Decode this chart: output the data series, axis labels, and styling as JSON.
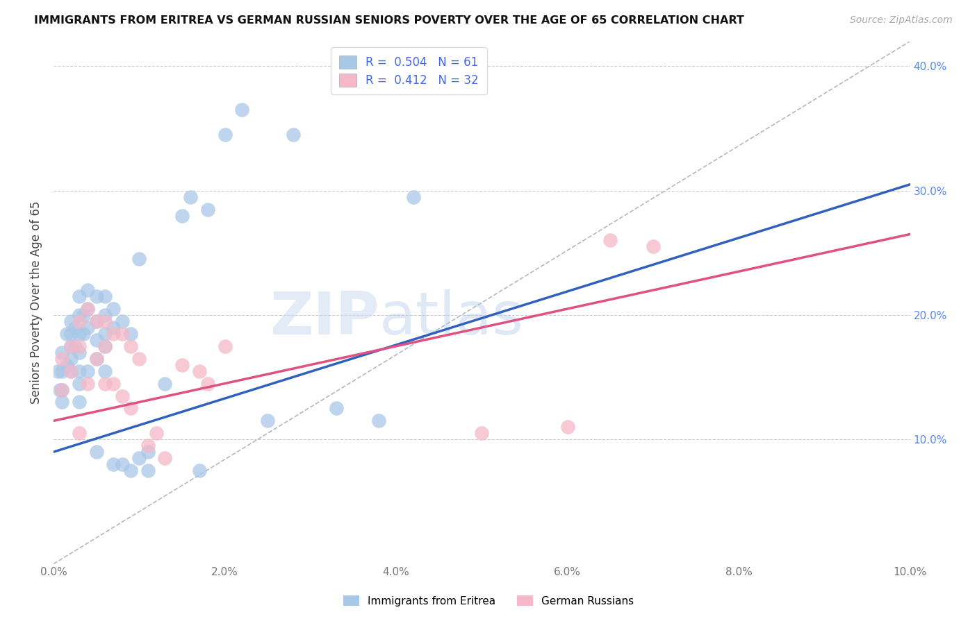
{
  "title": "IMMIGRANTS FROM ERITREA VS GERMAN RUSSIAN SENIORS POVERTY OVER THE AGE OF 65 CORRELATION CHART",
  "source": "Source: ZipAtlas.com",
  "ylabel": "Seniors Poverty Over the Age of 65",
  "xlim": [
    0.0,
    0.1
  ],
  "ylim": [
    0.0,
    0.42
  ],
  "xticks": [
    0.0,
    0.02,
    0.04,
    0.06,
    0.08,
    0.1
  ],
  "yticks": [
    0.0,
    0.1,
    0.2,
    0.3,
    0.4
  ],
  "ytick_labels_right": [
    "",
    "10.0%",
    "20.0%",
    "30.0%",
    "40.0%"
  ],
  "xtick_labels": [
    "0.0%",
    "2.0%",
    "4.0%",
    "6.0%",
    "8.0%",
    "10.0%"
  ],
  "legend_label1": "Immigrants from Eritrea",
  "legend_label2": "German Russians",
  "R1": 0.504,
  "N1": 61,
  "R2": 0.412,
  "N2": 32,
  "color1": "#a8c8e8",
  "color2": "#f4b8c8",
  "color1_line": "#3060c0",
  "color2_line": "#e05080",
  "watermark_zip": "ZIP",
  "watermark_atlas": "atlas",
  "background_color": "#ffffff",
  "scatter1_x": [
    0.0005,
    0.0007,
    0.001,
    0.001,
    0.001,
    0.001,
    0.0015,
    0.0015,
    0.002,
    0.002,
    0.002,
    0.002,
    0.002,
    0.0025,
    0.0025,
    0.003,
    0.003,
    0.003,
    0.003,
    0.003,
    0.003,
    0.003,
    0.0035,
    0.0035,
    0.004,
    0.004,
    0.004,
    0.004,
    0.005,
    0.005,
    0.005,
    0.005,
    0.005,
    0.006,
    0.006,
    0.006,
    0.006,
    0.006,
    0.007,
    0.007,
    0.007,
    0.008,
    0.008,
    0.009,
    0.009,
    0.01,
    0.01,
    0.011,
    0.011,
    0.013,
    0.015,
    0.016,
    0.017,
    0.018,
    0.02,
    0.022,
    0.025,
    0.028,
    0.033,
    0.038,
    0.042
  ],
  "scatter1_y": [
    0.155,
    0.14,
    0.17,
    0.155,
    0.14,
    0.13,
    0.185,
    0.16,
    0.195,
    0.185,
    0.175,
    0.165,
    0.155,
    0.19,
    0.175,
    0.215,
    0.2,
    0.185,
    0.17,
    0.155,
    0.145,
    0.13,
    0.2,
    0.185,
    0.22,
    0.205,
    0.19,
    0.155,
    0.215,
    0.195,
    0.18,
    0.165,
    0.09,
    0.215,
    0.2,
    0.185,
    0.175,
    0.155,
    0.205,
    0.19,
    0.08,
    0.195,
    0.08,
    0.185,
    0.075,
    0.245,
    0.085,
    0.09,
    0.075,
    0.145,
    0.28,
    0.295,
    0.075,
    0.285,
    0.345,
    0.365,
    0.115,
    0.345,
    0.125,
    0.115,
    0.295
  ],
  "scatter2_x": [
    0.001,
    0.001,
    0.002,
    0.002,
    0.003,
    0.003,
    0.003,
    0.004,
    0.004,
    0.005,
    0.005,
    0.006,
    0.006,
    0.006,
    0.007,
    0.007,
    0.008,
    0.008,
    0.009,
    0.009,
    0.01,
    0.011,
    0.012,
    0.013,
    0.015,
    0.017,
    0.018,
    0.02,
    0.05,
    0.06,
    0.065,
    0.07
  ],
  "scatter2_y": [
    0.165,
    0.14,
    0.175,
    0.155,
    0.195,
    0.175,
    0.105,
    0.205,
    0.145,
    0.195,
    0.165,
    0.195,
    0.175,
    0.145,
    0.185,
    0.145,
    0.185,
    0.135,
    0.175,
    0.125,
    0.165,
    0.095,
    0.105,
    0.085,
    0.16,
    0.155,
    0.145,
    0.175,
    0.105,
    0.11,
    0.26,
    0.255
  ],
  "line1_x": [
    0.0,
    0.1
  ],
  "line1_y": [
    0.09,
    0.305
  ],
  "line2_x": [
    0.0,
    0.1
  ],
  "line2_y": [
    0.115,
    0.265
  ]
}
